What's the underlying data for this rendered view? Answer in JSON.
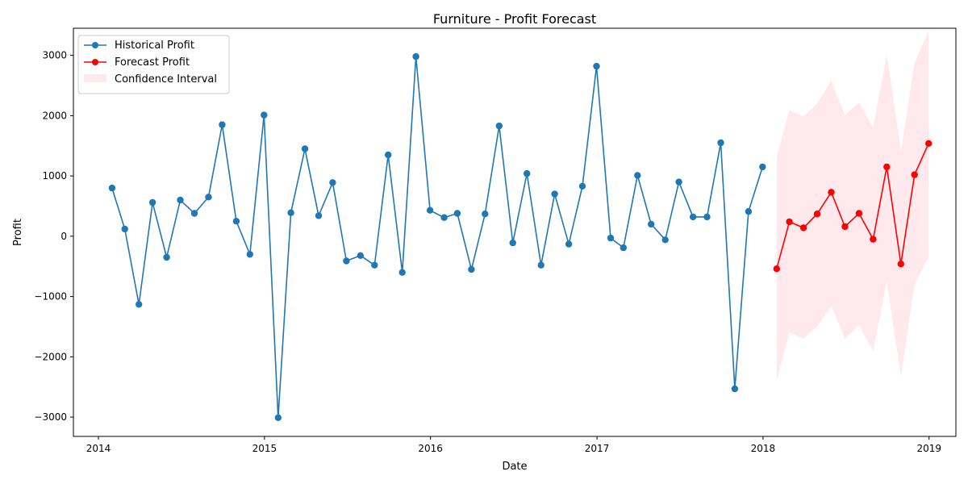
{
  "chart_data": {
    "type": "line",
    "title": "Furniture - Profit Forecast",
    "xlabel": "Date",
    "ylabel": "Profit",
    "xlim": [
      "2013-11-07",
      "2019-03-01"
    ],
    "ylim": [
      -3320,
      3450
    ],
    "x_ticks": [
      "2014-01-01",
      "2015-01-01",
      "2016-01-01",
      "2017-01-01",
      "2018-01-01",
      "2019-01-01"
    ],
    "x_tick_labels": [
      "2014",
      "2015",
      "2016",
      "2017",
      "2018",
      "2019"
    ],
    "y_ticks": [
      -3000,
      -2000,
      -1000,
      0,
      1000,
      2000,
      3000
    ],
    "y_tick_labels": [
      "−3000",
      "−2000",
      "−1000",
      "0",
      "1000",
      "2000",
      "3000"
    ],
    "grid": false,
    "legend_position": "top-left",
    "series": [
      {
        "name": "Historical Profit",
        "color": "#1f77b4",
        "marker": "circle",
        "points": [
          [
            "2014-01-31",
            800
          ],
          [
            "2014-02-28",
            120
          ],
          [
            "2014-03-31",
            -1130
          ],
          [
            "2014-04-30",
            560
          ],
          [
            "2014-05-31",
            -350
          ],
          [
            "2014-06-30",
            600
          ],
          [
            "2014-07-31",
            380
          ],
          [
            "2014-08-31",
            650
          ],
          [
            "2014-09-30",
            1850
          ],
          [
            "2014-10-31",
            250
          ],
          [
            "2014-11-30",
            -300
          ],
          [
            "2014-12-31",
            2010
          ],
          [
            "2015-01-31",
            -3010
          ],
          [
            "2015-02-28",
            390
          ],
          [
            "2015-03-31",
            1450
          ],
          [
            "2015-04-30",
            340
          ],
          [
            "2015-05-31",
            890
          ],
          [
            "2015-06-30",
            -410
          ],
          [
            "2015-07-31",
            -320
          ],
          [
            "2015-08-31",
            -480
          ],
          [
            "2015-09-30",
            1350
          ],
          [
            "2015-10-31",
            -600
          ],
          [
            "2015-11-30",
            2980
          ],
          [
            "2015-12-31",
            430
          ],
          [
            "2016-01-31",
            310
          ],
          [
            "2016-02-29",
            380
          ],
          [
            "2016-03-31",
            -550
          ],
          [
            "2016-04-30",
            370
          ],
          [
            "2016-05-31",
            1830
          ],
          [
            "2016-06-30",
            -110
          ],
          [
            "2016-07-31",
            1040
          ],
          [
            "2016-08-31",
            -480
          ],
          [
            "2016-09-30",
            700
          ],
          [
            "2016-10-31",
            -130
          ],
          [
            "2016-11-30",
            830
          ],
          [
            "2016-12-31",
            2820
          ],
          [
            "2017-01-31",
            -30
          ],
          [
            "2017-02-28",
            -190
          ],
          [
            "2017-03-31",
            1010
          ],
          [
            "2017-04-30",
            200
          ],
          [
            "2017-05-31",
            -60
          ],
          [
            "2017-06-30",
            900
          ],
          [
            "2017-07-31",
            320
          ],
          [
            "2017-08-31",
            320
          ],
          [
            "2017-09-30",
            1550
          ],
          [
            "2017-10-31",
            -2530
          ],
          [
            "2017-11-30",
            410
          ],
          [
            "2017-12-31",
            1150
          ]
        ]
      },
      {
        "name": "Forecast Profit",
        "color": "#ff0000",
        "marker": "circle",
        "points": [
          [
            "2018-01-31",
            -540
          ],
          [
            "2018-02-28",
            240
          ],
          [
            "2018-03-31",
            140
          ],
          [
            "2018-04-30",
            370
          ],
          [
            "2018-05-31",
            730
          ],
          [
            "2018-06-30",
            160
          ],
          [
            "2018-07-31",
            380
          ],
          [
            "2018-08-31",
            -50
          ],
          [
            "2018-09-30",
            1150
          ],
          [
            "2018-10-31",
            -460
          ],
          [
            "2018-11-30",
            1020
          ],
          [
            "2018-12-31",
            1540
          ]
        ]
      }
    ],
    "confidence_interval": {
      "name": "Confidence Interval",
      "color": "#ffc0cb",
      "opacity": 0.35,
      "x": [
        "2018-01-31",
        "2018-02-28",
        "2018-03-31",
        "2018-04-30",
        "2018-05-31",
        "2018-06-30",
        "2018-07-31",
        "2018-08-31",
        "2018-09-30",
        "2018-10-31",
        "2018-11-30",
        "2018-12-31"
      ],
      "lower": [
        -2400,
        -1600,
        -1700,
        -1500,
        -1150,
        -1700,
        -1480,
        -1900,
        -750,
        -2330,
        -800,
        -350
      ],
      "upper": [
        1320,
        2090,
        1990,
        2200,
        2580,
        2010,
        2220,
        1800,
        3020,
        1410,
        2870,
        3410
      ]
    }
  }
}
